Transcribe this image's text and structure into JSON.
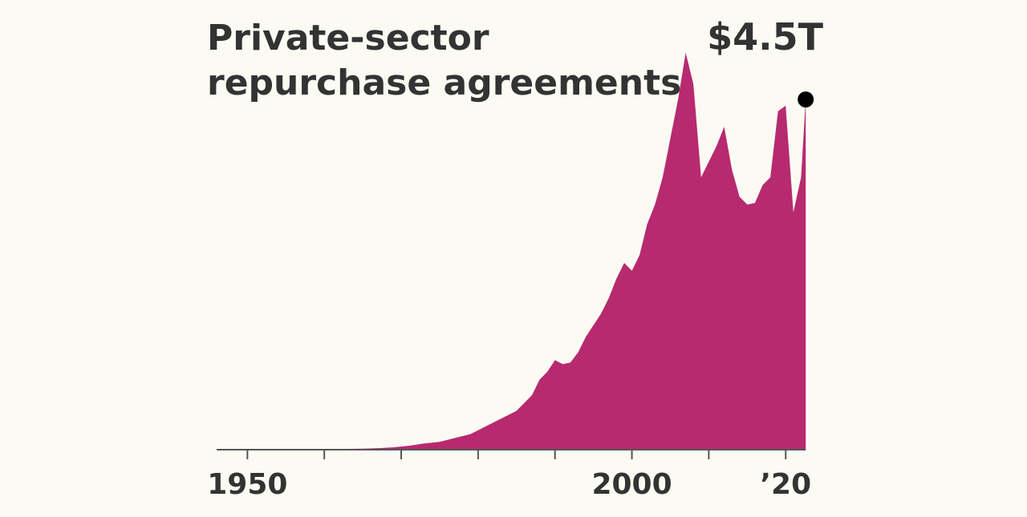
{
  "chart_data": {
    "type": "area",
    "title_lines": [
      "Private-sector",
      "repurchase agreements"
    ],
    "xlabel": "",
    "ylabel": "",
    "units": "trillions of dollars",
    "xlim": [
      1946,
      2023
    ],
    "ylim": [
      0,
      5.5
    ],
    "x_ticks": [
      1950,
      1960,
      1970,
      1980,
      1990,
      2000,
      2010,
      2020
    ],
    "x_tick_labels": [
      {
        "x": 1950,
        "label": "1950"
      },
      {
        "x": 2000,
        "label": "2000"
      },
      {
        "x": 2020,
        "label": "’20"
      }
    ],
    "end_label": "$4.5T",
    "grid": false,
    "colors": {
      "fill": "#b72a6f",
      "axis": "#555555",
      "text": "#333333",
      "marker": "#000000",
      "background": "#fcfbf3"
    },
    "series": [
      {
        "name": "Private-sector repurchase agreements",
        "x": [
          1946,
          1950,
          1955,
          1960,
          1965,
          1967,
          1969,
          1971,
          1973,
          1975,
          1977,
          1979,
          1981,
          1983,
          1985,
          1986,
          1987,
          1988,
          1989,
          1990,
          1991,
          1992,
          1993,
          1994,
          1995,
          1996,
          1997,
          1998,
          1999,
          2000,
          2001,
          2002,
          2003,
          2004,
          2005,
          2006,
          2007,
          2008,
          2009,
          2010,
          2011,
          2012,
          2013,
          2014,
          2015,
          2016,
          2017,
          2018,
          2019,
          2020,
          2021,
          2022
        ],
        "y": [
          0.0,
          0.0,
          0.003,
          0.006,
          0.012,
          0.02,
          0.03,
          0.05,
          0.08,
          0.1,
          0.15,
          0.2,
          0.3,
          0.4,
          0.5,
          0.6,
          0.7,
          0.9,
          1.0,
          1.15,
          1.1,
          1.12,
          1.25,
          1.45,
          1.6,
          1.75,
          1.95,
          2.2,
          2.4,
          2.3,
          2.5,
          2.9,
          3.15,
          3.5,
          4.0,
          4.5,
          5.1,
          4.7,
          3.5,
          3.7,
          3.9,
          4.15,
          3.6,
          3.25,
          3.15,
          3.17,
          3.4,
          3.5,
          4.35,
          4.42,
          3.05,
          3.5
        ]
      }
    ],
    "last_point": {
      "x": 2022.6,
      "y": 4.5
    }
  }
}
